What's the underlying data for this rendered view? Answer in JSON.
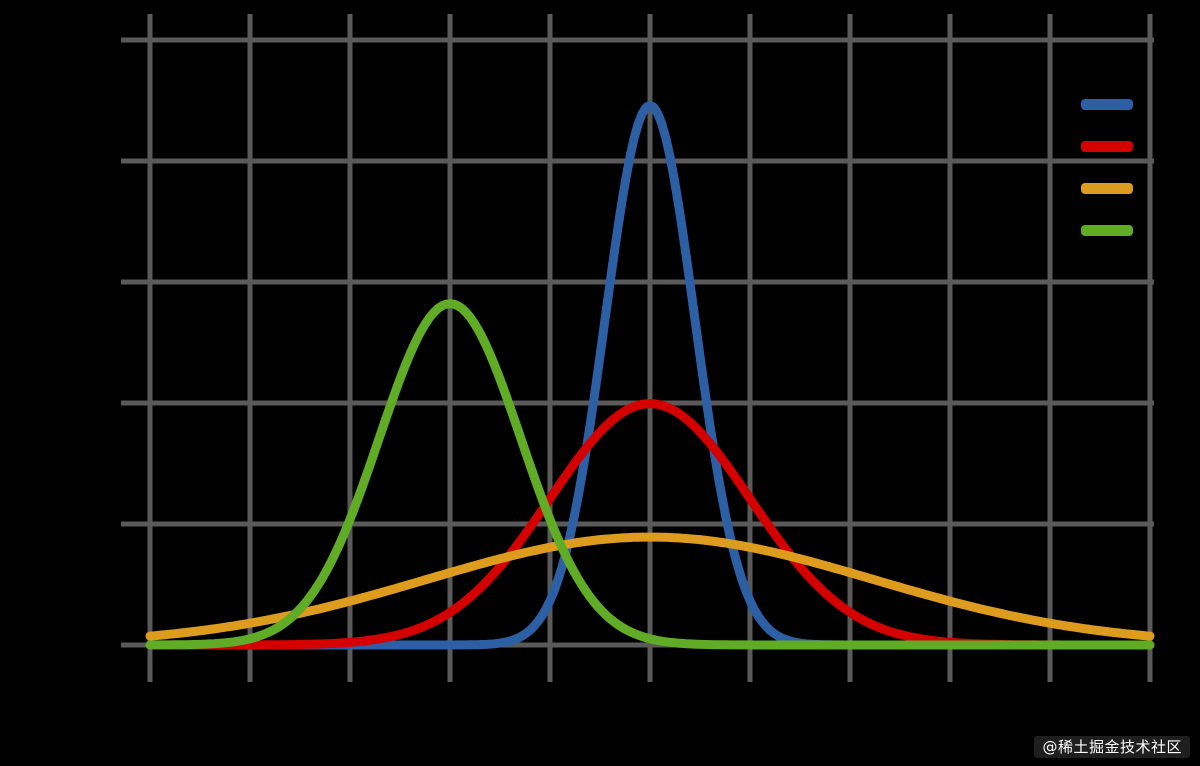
{
  "figure": {
    "background": "#000000",
    "grid_color": "#5a5a5a",
    "watermark": "@稀土掘金技术社区"
  },
  "chart_data": {
    "type": "line",
    "description": "Normal (Gaussian) probability density function curves on a dark background with gray grid; legend of four color swatches at top right (labels not visible against background)",
    "title": "",
    "xlabel": "",
    "ylabel": "",
    "x_range": [
      -5,
      5
    ],
    "y_range": [
      0,
      1.0
    ],
    "x_gridlines": [
      -5,
      -4,
      -3,
      -2,
      -1,
      0,
      1,
      2,
      3,
      4,
      5
    ],
    "y_gridlines": [
      0,
      0.2,
      0.4,
      0.6,
      0.8,
      1.0
    ],
    "grid": true,
    "legend_position": "top-right",
    "series": [
      {
        "name": "blue curve (μ=0, σ²≈0.2)",
        "color": "#2d5fa5",
        "mu": 0,
        "sigma2": 0.2,
        "peak_x": 0,
        "peak_y": 0.89
      },
      {
        "name": "red curve (μ=0, σ²≈1.0)",
        "color": "#d40000",
        "mu": 0,
        "sigma2": 1.0,
        "peak_x": 0,
        "peak_y": 0.4
      },
      {
        "name": "orange curve (μ=0, σ²≈5.0)",
        "color": "#dd9c1d",
        "mu": 0,
        "sigma2": 5.0,
        "peak_x": 0,
        "peak_y": 0.18
      },
      {
        "name": "green curve (μ=-2, σ²≈0.5)",
        "color": "#61ac27",
        "mu": -2,
        "sigma2": 0.5,
        "peak_x": -2,
        "peak_y": 0.56
      }
    ]
  }
}
